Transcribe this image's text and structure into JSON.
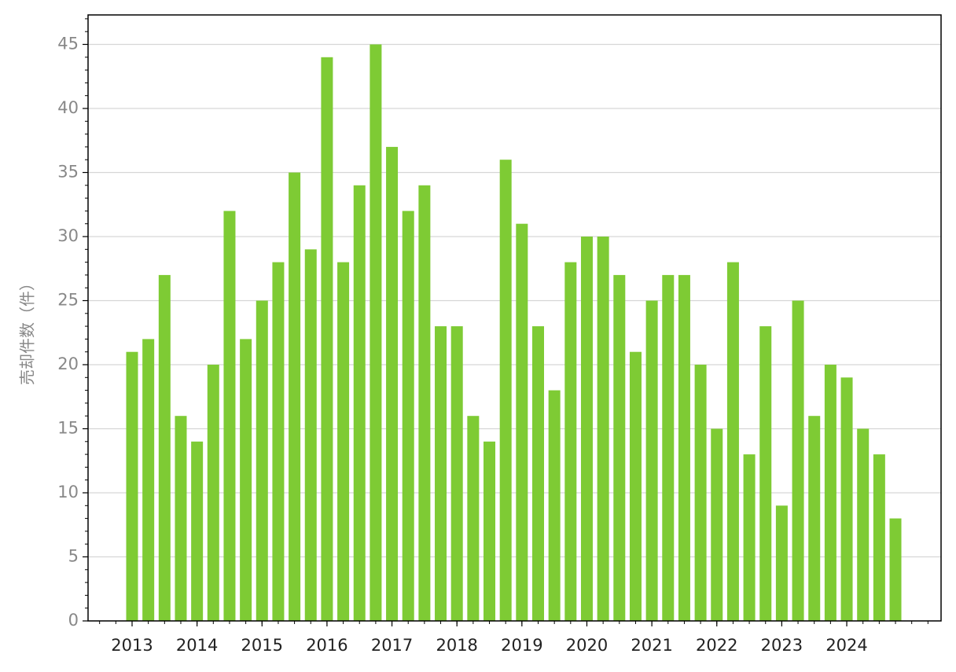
{
  "chart_data": {
    "type": "bar",
    "y_label": "売却件数（件）",
    "categories": [
      "2013",
      null,
      null,
      null,
      "2014",
      null,
      null,
      null,
      "2015",
      null,
      null,
      null,
      "2016",
      null,
      null,
      null,
      "2017",
      null,
      null,
      null,
      "2018",
      null,
      null,
      null,
      "2019",
      null,
      null,
      null,
      "2020",
      null,
      null,
      null,
      "2021",
      null,
      null,
      null,
      "2022",
      null,
      null,
      null,
      "2023",
      null,
      null,
      null,
      "2024",
      null,
      null,
      null
    ],
    "values": [
      21,
      22,
      27,
      16,
      14,
      20,
      32,
      22,
      25,
      28,
      35,
      29,
      44,
      28,
      34,
      45,
      37,
      32,
      34,
      23,
      23,
      16,
      14,
      36,
      31,
      23,
      18,
      28,
      30,
      30,
      27,
      21,
      25,
      27,
      27,
      20,
      15,
      28,
      13,
      23,
      9,
      25,
      16,
      20,
      19,
      15,
      13,
      8
    ],
    "color": "#7ecb34",
    "ylim": [
      0,
      47.3
    ],
    "yticks": [
      0,
      5,
      10,
      15,
      20,
      25,
      30,
      35,
      40,
      45
    ],
    "grid": true
  }
}
